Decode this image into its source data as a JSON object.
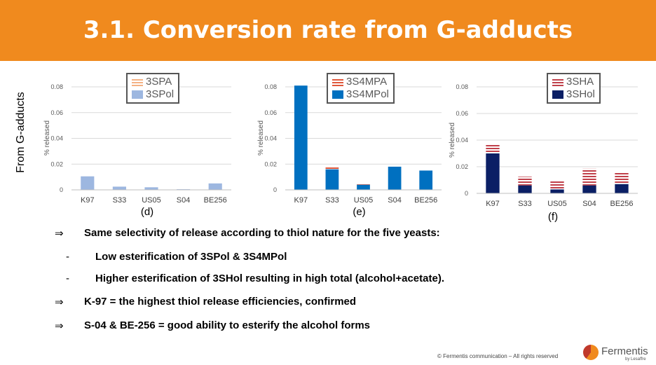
{
  "header": {
    "title": "3.1. Conversion rate from G-adducts"
  },
  "side_label": "From G-adducts",
  "charts": [
    {
      "letter": "(d)",
      "ylabel": "% released",
      "legend": [
        "3SPA",
        "3SPol"
      ]
    },
    {
      "letter": "(e)",
      "ylabel": "% released",
      "legend": [
        "3S4MPA",
        "3S4MPol"
      ]
    },
    {
      "letter": "(f)",
      "ylabel": "% released",
      "legend": [
        "3SHA",
        "3SHol"
      ]
    }
  ],
  "chart_data": [
    {
      "type": "bar",
      "stacked": true,
      "categories": [
        "K97",
        "S33",
        "US05",
        "S04",
        "BE256"
      ],
      "ylim": [
        0,
        0.08
      ],
      "yticks": [
        "0",
        "0.02",
        "0.04",
        "0.06",
        "0.08"
      ],
      "ylabel": "% released",
      "grid": true,
      "series": [
        {
          "name": "3SPol",
          "color": "#9DB7E0",
          "pattern": "solid",
          "values": [
            0.0105,
            0.0025,
            0.002,
            0.0005,
            0.005
          ]
        },
        {
          "name": "3SPA",
          "color": "#F4B183",
          "pattern": "striped",
          "values": [
            0,
            0,
            0,
            0,
            0
          ]
        }
      ]
    },
    {
      "type": "bar",
      "stacked": true,
      "categories": [
        "K97",
        "S33",
        "US05",
        "S04",
        "BE256"
      ],
      "ylim": [
        0,
        0.08
      ],
      "yticks": [
        "0",
        "0.02",
        "0.04",
        "0.06",
        "0.08"
      ],
      "ylabel": "% released",
      "grid": true,
      "series": [
        {
          "name": "3S4MPol",
          "color": "#0070C0",
          "pattern": "solid",
          "values": [
            0.081,
            0.016,
            0.004,
            0.018,
            0.015
          ]
        },
        {
          "name": "3S4MPA",
          "color": "#E0573A",
          "pattern": "striped",
          "values": [
            0,
            0.0015,
            0.0012,
            0,
            0
          ]
        }
      ]
    },
    {
      "type": "bar",
      "stacked": true,
      "categories": [
        "K97",
        "S33",
        "US05",
        "S04",
        "BE256"
      ],
      "ylim": [
        0,
        0.08
      ],
      "yticks": [
        "0",
        "0.02",
        "0.04",
        "0.06",
        "0.08"
      ],
      "ylabel": "% released",
      "grid": true,
      "series": [
        {
          "name": "3SHol",
          "color": "#0B1F65",
          "pattern": "solid",
          "values": [
            0.03,
            0.006,
            0.003,
            0.006,
            0.007
          ]
        },
        {
          "name": "3SHA",
          "color": "#C0404A",
          "pattern": "striped",
          "values": [
            0.007,
            0.0065,
            0.007,
            0.0125,
            0.0085
          ]
        }
      ]
    }
  ],
  "bullets": [
    {
      "symbol": "⇒",
      "text": "Same selectivity of release according to thiol nature for the five yeasts:"
    },
    {
      "symbol": "-",
      "text": "Low esterification of 3SPol & 3S4MPol"
    },
    {
      "symbol": "-",
      "text": "Higher esterification of 3SHol resulting in high total (alcohol+acetate)."
    },
    {
      "symbol": "⇒",
      "text": "K-97 = the highest thiol release efficiencies, confirmed"
    },
    {
      "symbol": "⇒",
      "text": "S-04 & BE-256  = good ability to esterify the alcohol forms"
    }
  ],
  "footer": {
    "copyright": "© Fermentis communication  – All rights reserved",
    "brand": "Fermentis",
    "brand_sub": "by Lesaffre"
  }
}
